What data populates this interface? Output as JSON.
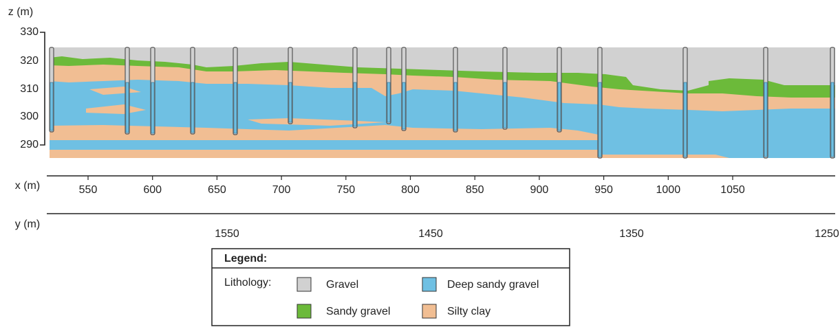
{
  "axes": {
    "z": {
      "label": "z (m)",
      "ticks": [
        "330",
        "320",
        "310",
        "300",
        "290"
      ]
    },
    "x": {
      "label": "x (m)",
      "ticks": [
        "550",
        "600",
        "650",
        "700",
        "750",
        "800",
        "850",
        "900",
        "950",
        "1000",
        "1050"
      ]
    },
    "y": {
      "label": "y (m)",
      "ticks": [
        "1550",
        "1450",
        "1350",
        "1250"
      ]
    }
  },
  "legend": {
    "title": "Legend:",
    "group_label": "Lithology:",
    "items": [
      {
        "label": "Gravel",
        "color": "#d1d1d1"
      },
      {
        "label": "Sandy gravel",
        "color": "#6cba3a"
      },
      {
        "label": "Deep sandy gravel",
        "color": "#6fc0e3"
      },
      {
        "label": "Silty clay",
        "color": "#f1be93"
      }
    ]
  }
}
